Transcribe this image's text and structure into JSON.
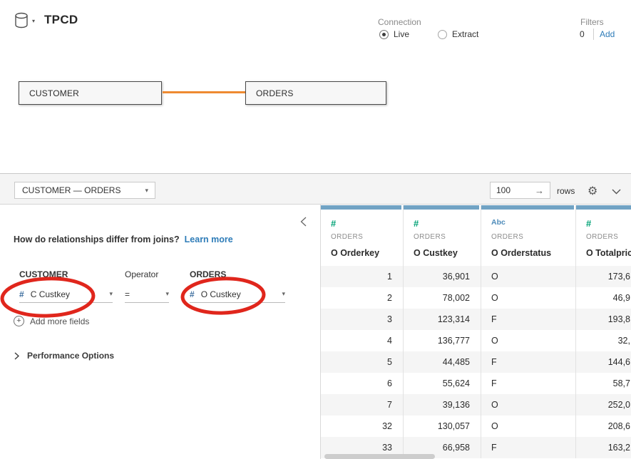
{
  "app": {
    "title": "TPCD",
    "connection": {
      "label": "Connection",
      "options": [
        {
          "label": "Live",
          "selected": true
        },
        {
          "label": "Extract",
          "selected": false
        }
      ]
    },
    "filters": {
      "label": "Filters",
      "count": "0",
      "add_label": "Add"
    }
  },
  "canvas": {
    "tables": [
      {
        "name": "CUSTOMER"
      },
      {
        "name": "ORDERS"
      }
    ]
  },
  "panel": {
    "relationship_selector": "CUSTOMER — ORDERS",
    "rows_input": "100",
    "rows_label": "rows"
  },
  "relationship_editor": {
    "question": "How do relationships differ from joins?",
    "learn_more": "Learn more",
    "left_table_label": "CUSTOMER",
    "operator_label": "Operator",
    "right_table_label": "ORDERS",
    "left_field_icon": "#",
    "left_field": "C Custkey",
    "operator_value": "=",
    "right_field_icon": "#",
    "right_field": "O Custkey",
    "add_more_fields": "Add more fields",
    "performance_options": "Performance Options"
  },
  "grid": {
    "columns": [
      {
        "type": "number",
        "type_icon": "#",
        "source": "ORDERS",
        "name": "O Orderkey"
      },
      {
        "type": "number",
        "type_icon": "#",
        "source": "ORDERS",
        "name": "O Custkey"
      },
      {
        "type": "string",
        "type_icon": "Abc",
        "source": "ORDERS",
        "name": "O Orderstatus"
      },
      {
        "type": "number",
        "type_icon": "#",
        "source": "ORDERS",
        "name": "O Totalprice"
      }
    ],
    "rows": [
      [
        "1",
        "36,901",
        "O",
        "173,6"
      ],
      [
        "2",
        "78,002",
        "O",
        "46,9"
      ],
      [
        "3",
        "123,314",
        "F",
        "193,8"
      ],
      [
        "4",
        "136,777",
        "O",
        "32,"
      ],
      [
        "5",
        "44,485",
        "F",
        "144,6"
      ],
      [
        "6",
        "55,624",
        "F",
        "58,7"
      ],
      [
        "7",
        "39,136",
        "O",
        "252,0"
      ],
      [
        "32",
        "130,057",
        "O",
        "208,6"
      ],
      [
        "33",
        "66,958",
        "F",
        "163,2"
      ]
    ]
  },
  "colors": {
    "accent_orange": "#EE8A31",
    "annotation_red": "#E0261C",
    "header_bar_blue": "#71A3C4",
    "number_green": "#04A377",
    "string_blue": "#4F8CBA",
    "link_blue": "#2E7CB8"
  }
}
